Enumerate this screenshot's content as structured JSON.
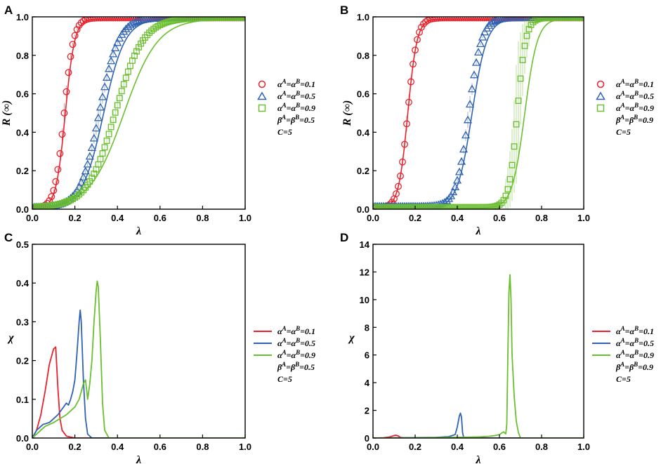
{
  "chart_data": [
    {
      "panel": "A",
      "type": "scatter",
      "xlabel": "λ",
      "ylabel": "R (∞)",
      "xlim": [
        0.0,
        1.0
      ],
      "ylim": [
        0.0,
        1.0
      ],
      "xticks": [
        "0.0",
        "0.2",
        "0.4",
        "0.6",
        "0.8",
        "1.0"
      ],
      "yticks": [
        "0.0",
        "0.2",
        "0.4",
        "0.6",
        "0.8",
        "1.0"
      ],
      "legend_extra": [
        "β^A=β^B=0.5",
        "C=5"
      ],
      "series": [
        {
          "name": "α^A=α^B=0.1",
          "color": "#e8212b",
          "marker": "circle",
          "threshold": 0.15,
          "width": 0.022,
          "floor": 0.005
        },
        {
          "name": "α^A=α^B=0.5",
          "color": "#2f62b3",
          "marker": "triangle",
          "threshold": 0.315,
          "width": 0.045,
          "floor": 0.01
        },
        {
          "name": "α^A=α^B=0.9",
          "color": "#6abf2e",
          "marker": "square",
          "threshold": 0.39,
          "width": 0.065,
          "floor": 0.01
        }
      ],
      "theory": [
        {
          "color": "#e8212b",
          "threshold": 0.155,
          "width": 0.022
        },
        {
          "color": "#2f62b3",
          "threshold": 0.335,
          "width": 0.05
        },
        {
          "color": "#6abf2e",
          "threshold": 0.43,
          "width": 0.08
        }
      ]
    },
    {
      "panel": "B",
      "type": "scatter",
      "xlabel": "λ",
      "ylabel": "R (∞)",
      "xlim": [
        0.0,
        1.0
      ],
      "ylim": [
        0.0,
        1.0
      ],
      "xticks": [
        "0.0",
        "0.2",
        "0.4",
        "0.6",
        "0.8",
        "1.0"
      ],
      "yticks": [
        "0.0",
        "0.2",
        "0.4",
        "0.6",
        "0.8",
        "1.0"
      ],
      "legend_extra": [
        "β^A=β^B=0.9",
        "C=5"
      ],
      "series": [
        {
          "name": "α^A=α^B=0.1",
          "color": "#e8212b",
          "marker": "circle",
          "threshold": 0.165,
          "width": 0.022,
          "floor": 0.005
        },
        {
          "name": "α^A=α^B=0.5",
          "color": "#2f62b3",
          "marker": "triangle",
          "threshold": 0.455,
          "width": 0.03,
          "floor": 0.015
        },
        {
          "name": "α^A=α^B=0.9",
          "color": "#6abf2e",
          "marker": "square",
          "threshold": 0.685,
          "width": 0.02,
          "floor": 0.01
        }
      ],
      "theory": [
        {
          "color": "#e8212b",
          "threshold": 0.165,
          "width": 0.022
        },
        {
          "color": "#2f62b3",
          "threshold": 0.47,
          "width": 0.035
        },
        {
          "color": "#6abf2e",
          "threshold": 0.72,
          "width": 0.03
        }
      ]
    },
    {
      "panel": "C",
      "type": "line",
      "xlabel": "λ",
      "ylabel": "χ",
      "xlim": [
        0.0,
        1.0
      ],
      "ylim": [
        0.0,
        0.5
      ],
      "xticks": [
        "0.0",
        "0.2",
        "0.4",
        "0.6",
        "0.8",
        "1.0"
      ],
      "yticks": [
        "0.0",
        "0.1",
        "0.2",
        "0.3",
        "0.4",
        "0.5"
      ],
      "legend_extra": [
        "β^A=β^B=0.5",
        "C=5"
      ],
      "series": [
        {
          "name": "α^A=α^B=0.1",
          "color": "#e8212b",
          "x": [
            0.0,
            0.02,
            0.04,
            0.06,
            0.08,
            0.1,
            0.11,
            0.12,
            0.13,
            0.14,
            0.16,
            0.2,
            1.0
          ],
          "y": [
            0.0,
            0.02,
            0.06,
            0.12,
            0.19,
            0.23,
            0.235,
            0.13,
            0.05,
            0.02,
            0.005,
            0.0,
            0.0
          ]
        },
        {
          "name": "α^A=α^B=0.5",
          "color": "#2f62b3",
          "x": [
            0.0,
            0.02,
            0.05,
            0.08,
            0.1,
            0.12,
            0.14,
            0.16,
            0.17,
            0.18,
            0.19,
            0.2,
            0.21,
            0.22,
            0.225,
            0.23,
            0.24,
            0.25,
            0.26,
            0.28,
            1.0
          ],
          "y": [
            0.0,
            0.02,
            0.035,
            0.04,
            0.05,
            0.06,
            0.075,
            0.09,
            0.085,
            0.1,
            0.12,
            0.15,
            0.22,
            0.3,
            0.33,
            0.3,
            0.15,
            0.05,
            0.01,
            0.0,
            0.0
          ]
        },
        {
          "name": "α^A=α^B=0.9",
          "color": "#6abf2e",
          "x": [
            0.0,
            0.03,
            0.06,
            0.1,
            0.13,
            0.16,
            0.18,
            0.2,
            0.21,
            0.22,
            0.23,
            0.24,
            0.25,
            0.26,
            0.27,
            0.28,
            0.29,
            0.3,
            0.305,
            0.31,
            0.32,
            0.33,
            0.34,
            0.36,
            1.0
          ],
          "y": [
            0.0,
            0.015,
            0.03,
            0.04,
            0.05,
            0.06,
            0.07,
            0.08,
            0.09,
            0.1,
            0.12,
            0.14,
            0.15,
            0.1,
            0.14,
            0.2,
            0.3,
            0.38,
            0.405,
            0.39,
            0.25,
            0.09,
            0.02,
            0.0,
            0.0
          ]
        }
      ]
    },
    {
      "panel": "D",
      "type": "line",
      "xlabel": "λ",
      "ylabel": "χ",
      "xlim": [
        0.0,
        1.0
      ],
      "ylim": [
        0.0,
        14.0
      ],
      "xticks": [
        "0.0",
        "0.2",
        "0.4",
        "0.6",
        "0.8",
        "1.0"
      ],
      "yticks": [
        "0",
        "2",
        "4",
        "6",
        "8",
        "10",
        "12",
        "14"
      ],
      "legend_extra": [
        "β^A=β^B=0.9",
        "C=5"
      ],
      "series": [
        {
          "name": "α^A=α^B=0.1",
          "color": "#e8212b",
          "x": [
            0.0,
            0.05,
            0.08,
            0.1,
            0.11,
            0.12,
            0.13,
            0.15,
            1.0
          ],
          "y": [
            0.0,
            0.02,
            0.08,
            0.18,
            0.2,
            0.15,
            0.05,
            0.0,
            0.0
          ]
        },
        {
          "name": "α^A=α^B=0.5",
          "color": "#2f62b3",
          "x": [
            0.0,
            0.1,
            0.2,
            0.3,
            0.36,
            0.39,
            0.4,
            0.41,
            0.415,
            0.42,
            0.425,
            0.43,
            0.45,
            1.0
          ],
          "y": [
            0.0,
            0.02,
            0.03,
            0.05,
            0.1,
            0.25,
            0.8,
            1.6,
            1.8,
            1.5,
            0.4,
            0.05,
            0.0,
            0.0
          ]
        },
        {
          "name": "α^A=α^B=0.9",
          "color": "#6abf2e",
          "x": [
            0.0,
            0.2,
            0.4,
            0.5,
            0.55,
            0.58,
            0.6,
            0.61,
            0.62,
            0.63,
            0.635,
            0.64,
            0.645,
            0.65,
            0.655,
            0.66,
            0.67,
            0.68,
            0.69,
            0.7,
            1.0
          ],
          "y": [
            0.0,
            0.02,
            0.05,
            0.08,
            0.12,
            0.18,
            0.25,
            0.35,
            0.45,
            0.3,
            1.0,
            6.0,
            10.5,
            11.8,
            10.0,
            6.0,
            3.0,
            1.2,
            0.4,
            0.0,
            0.0
          ]
        }
      ]
    }
  ]
}
